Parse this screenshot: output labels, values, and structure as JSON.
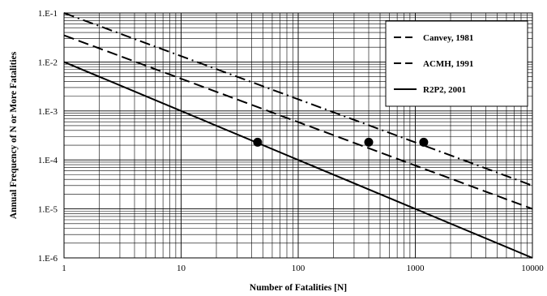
{
  "chart_data": {
    "type": "line",
    "title": "",
    "xlabel": "Number of Fatalities [N]",
    "ylabel": "Annual Frequency of N or More Fatalities",
    "xscale": "log",
    "yscale": "log",
    "xlim": [
      1,
      10000
    ],
    "ylim": [
      1e-06,
      0.1
    ],
    "x_tick_labels": [
      "1",
      "10",
      "100",
      "1000",
      "10000"
    ],
    "y_tick_labels": [
      "1.E-6",
      "1.E-5",
      "1.E-4",
      "1.E-3",
      "1.E-2",
      "1.E-1"
    ],
    "grid": "major and minor (log decades)",
    "legend_position": "top-right",
    "series": [
      {
        "name": "Canvey, 1981",
        "line_style": "long-dash-dot",
        "x": [
          1,
          10000
        ],
        "y": [
          0.1,
          3e-05
        ]
      },
      {
        "name": "ACMH, 1991",
        "line_style": "dash",
        "x": [
          1,
          10000
        ],
        "y": [
          0.035,
          1e-05
        ]
      },
      {
        "name": "R2P2, 2001",
        "line_style": "solid",
        "x": [
          1,
          10000
        ],
        "y": [
          0.01,
          1e-06
        ]
      }
    ],
    "markers": [
      {
        "x": 45,
        "y": 0.00023
      },
      {
        "x": 400,
        "y": 0.00023
      },
      {
        "x": 1180,
        "y": 0.00023
      }
    ]
  }
}
